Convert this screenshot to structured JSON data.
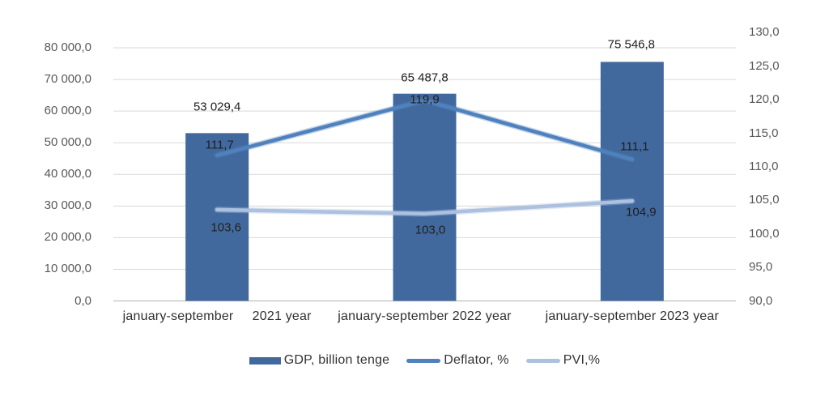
{
  "chart_data": {
    "type": "bar",
    "subtype": "combo-bar-line",
    "title": "",
    "categories": [
      "january-september     2021 year",
      "january-september 2022 year",
      "january-september 2023 year"
    ],
    "series": [
      {
        "name": "GDP, billion tenge",
        "type": "bar",
        "axis": "left",
        "color": "#41699E",
        "values": [
          53029.4,
          65487.8,
          75546.8
        ],
        "labels": [
          "53 029,4",
          "65 487,8",
          "75 546,8"
        ]
      },
      {
        "name": "Deflator, %",
        "type": "line",
        "axis": "right",
        "color": "#4F81BD",
        "values": [
          111.7,
          119.9,
          111.1
        ],
        "labels": [
          "111,7",
          "119,9",
          "111,1"
        ]
      },
      {
        "name": "PVI,%",
        "type": "line",
        "axis": "right",
        "color": "#ACC0DF",
        "values": [
          103.6,
          103.0,
          104.9
        ],
        "labels": [
          "103,6",
          "103,0",
          "104,9"
        ]
      }
    ],
    "left_axis": {
      "min": 0,
      "max": 80000,
      "step": 10000,
      "tick_labels": [
        "80 000,0",
        "70 000,0",
        "60 000,0",
        "50 000,0",
        "40 000,0",
        "30 000,0",
        "20 000,0",
        "10 000,0",
        "0,0"
      ]
    },
    "right_axis": {
      "min": 90,
      "max": 130,
      "step": 5,
      "tick_labels": [
        "130,0",
        "125,0",
        "120,0",
        "115,0",
        "110,0",
        "105,0",
        "100,0",
        "95,0",
        "90,0"
      ]
    },
    "grid": true,
    "legend_position": "bottom",
    "colors": {
      "gridline": "#D9D9D9",
      "axis_line": "#BFBFBF",
      "background": "#FFFFFF"
    }
  }
}
